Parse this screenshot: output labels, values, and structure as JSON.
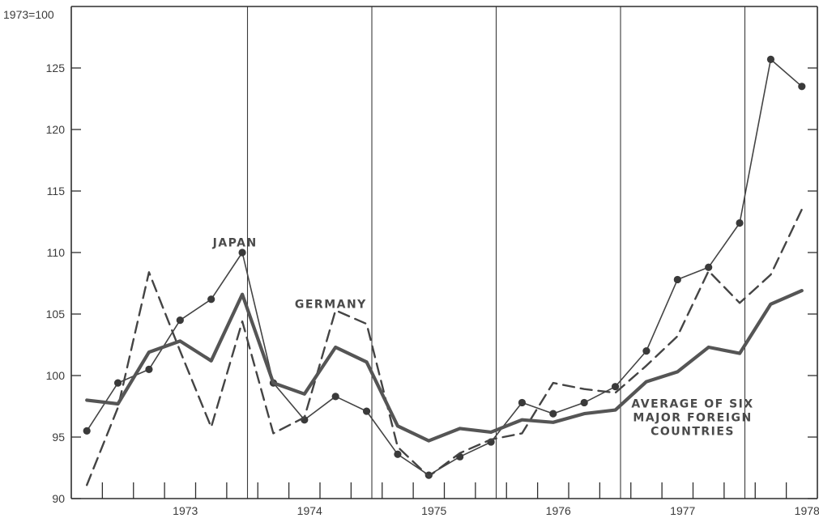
{
  "chart_data": {
    "type": "line",
    "ylabel": "1973=100",
    "ylim": [
      90,
      130
    ],
    "yticks": [
      90,
      95,
      100,
      105,
      110,
      115,
      120,
      125
    ],
    "x_start": 1972.583,
    "x_end": 1978.583,
    "year_ticks": [
      "1973",
      "1974",
      "1975",
      "1976",
      "1977",
      "1978"
    ],
    "grid": "vertical lines at year boundaries",
    "x": [
      1972.708,
      1972.958,
      1973.208,
      1973.458,
      1973.708,
      1973.958,
      1974.208,
      1974.458,
      1974.708,
      1974.958,
      1975.208,
      1975.458,
      1975.708,
      1975.958,
      1976.208,
      1976.458,
      1976.708,
      1976.958,
      1977.208,
      1977.458,
      1977.708,
      1977.958,
      1978.208,
      1978.458
    ],
    "series": [
      {
        "name": "JAPAN",
        "style": "line-with-markers",
        "color": "#444444",
        "values": [
          95.5,
          99.4,
          100.5,
          104.5,
          106.2,
          110.0,
          99.4,
          96.4,
          98.3,
          97.1,
          93.6,
          91.9,
          93.4,
          94.6,
          97.8,
          96.9,
          97.8,
          99.1,
          102.0,
          107.8,
          108.8,
          112.4,
          125.7,
          123.5
        ]
      },
      {
        "name": "GERMANY",
        "style": "dashed",
        "color": "#444444",
        "values": [
          91.1,
          97.4,
          108.4,
          102.0,
          95.8,
          104.4,
          95.3,
          96.6,
          105.3,
          104.2,
          94.2,
          91.8,
          93.7,
          94.8,
          95.3,
          99.4,
          98.9,
          98.6,
          100.8,
          103.2,
          108.5,
          105.9,
          108.2,
          113.5
        ]
      },
      {
        "name": "AVERAGE OF SIX MAJOR FOREIGN COUNTRIES",
        "style": "thick",
        "color": "#555555",
        "values": [
          98.0,
          97.7,
          101.9,
          102.8,
          101.2,
          106.6,
          99.4,
          98.5,
          102.3,
          101.1,
          95.9,
          94.7,
          95.7,
          95.4,
          96.4,
          96.2,
          96.9,
          97.2,
          99.5,
          100.3,
          102.3,
          101.8,
          105.8,
          106.9
        ]
      }
    ],
    "series_labels": [
      {
        "series": 0,
        "lines": [
          "JAPAN"
        ],
        "x": 1973.9,
        "y": 110.5
      },
      {
        "series": 1,
        "lines": [
          "GERMANY"
        ],
        "x": 1974.67,
        "y": 105.5
      },
      {
        "series": 2,
        "lines": [
          "AVERAGE OF SIX",
          "MAJOR FOREIGN",
          "COUNTRIES"
        ],
        "x": 1977.58,
        "y": 97.4
      }
    ]
  }
}
